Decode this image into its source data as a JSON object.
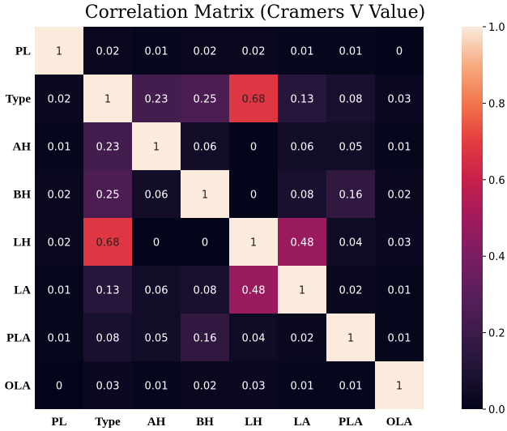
{
  "chart_data": {
    "type": "heatmap",
    "title": "Correlation Matrix (Cramers V Value)",
    "row_labels": [
      "PL",
      "Type",
      "AH",
      "BH",
      "LH",
      "LA",
      "PLA",
      "OLA"
    ],
    "col_labels": [
      "PL",
      "Type",
      "AH",
      "BH",
      "LH",
      "LA",
      "PLA",
      "OLA"
    ],
    "values": [
      [
        1,
        0.02,
        0.01,
        0.02,
        0.02,
        0.01,
        0.01,
        0
      ],
      [
        0.02,
        1,
        0.23,
        0.25,
        0.68,
        0.13,
        0.08,
        0.03
      ],
      [
        0.01,
        0.23,
        1,
        0.06,
        0,
        0.06,
        0.05,
        0.01
      ],
      [
        0.02,
        0.25,
        0.06,
        1,
        0,
        0.08,
        0.16,
        0.02
      ],
      [
        0.02,
        0.68,
        0,
        0,
        1,
        0.48,
        0.04,
        0.03
      ],
      [
        0.01,
        0.13,
        0.06,
        0.08,
        0.48,
        1,
        0.02,
        0.01
      ],
      [
        0.01,
        0.08,
        0.05,
        0.16,
        0.04,
        0.02,
        1,
        0.01
      ],
      [
        0,
        0.03,
        0.01,
        0.02,
        0.03,
        0.01,
        0.01,
        1
      ]
    ],
    "colorbar": {
      "min": 0.0,
      "max": 1.0,
      "ticks": [
        "0.0",
        "0.2",
        "0.4",
        "0.6",
        "0.8",
        "1.0"
      ],
      "colormap": "rocket"
    },
    "annotations": true
  }
}
